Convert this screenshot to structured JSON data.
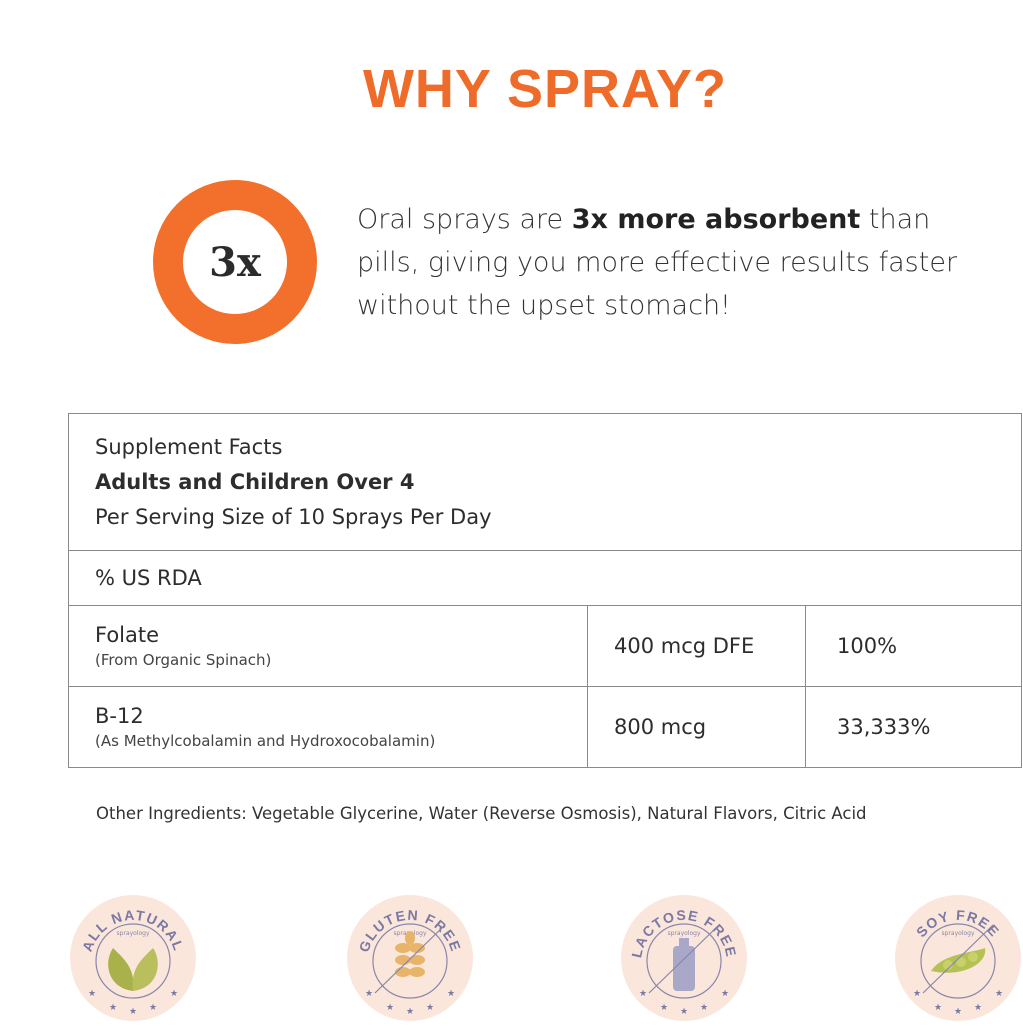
{
  "title": "WHY SPRAY?",
  "stat": {
    "value": "3x",
    "text_before": "Oral sprays are ",
    "bold": "3x more absorbent",
    "text_after": " than pills, giving you more effective results faster without the upset stomach!"
  },
  "accent_color": "#f2702c",
  "facts": {
    "heading": "Supplement Facts",
    "audience": "Adults and Children Over 4",
    "serving": "Per Serving Size of 10 Sprays Per Day",
    "rda_label": "% US RDA",
    "rows": [
      {
        "name": "Folate",
        "source": "(From Organic Spinach)",
        "amount": "400 mcg DFE",
        "rda": "100%"
      },
      {
        "name": "B-12",
        "source": "(As Methylcobalamin and Hydroxocobalamin)",
        "amount": "800 mcg",
        "rda": "33,333%"
      }
    ]
  },
  "other_ingredients": "Other Ingredients: Vegetable Glycerine, Water (Reverse Osmosis), Natural Flavors, Citric Acid",
  "badges": [
    {
      "label": "ALL NATURAL",
      "brand": "sprayology",
      "icon": "leaves-icon"
    },
    {
      "label": "GLUTEN FREE",
      "brand": "sprayology",
      "icon": "wheat-icon"
    },
    {
      "label": "LACTOSE FREE",
      "brand": "sprayology",
      "icon": "milk-bottle-icon"
    },
    {
      "label": "SOY FREE",
      "brand": "sprayology",
      "icon": "soybean-icon"
    }
  ]
}
